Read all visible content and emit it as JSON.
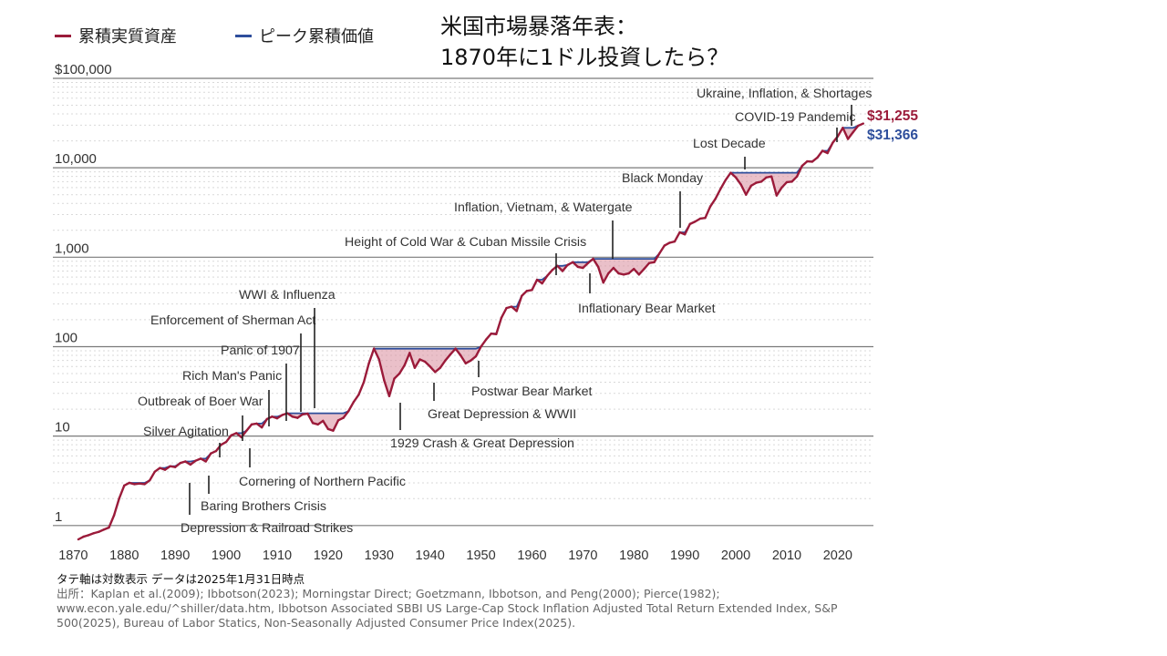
{
  "title": {
    "line1": "米国市場暴落年表：",
    "line2": "1870年に1ドル投資したら？"
  },
  "legend": [
    {
      "label": "累積実質資産",
      "color": "#9b1b3a"
    },
    {
      "label": "ピーク累積価値",
      "color": "#2e4e9c"
    }
  ],
  "notes": {
    "line1": "タテ軸は対数表示  データは2025年1月31日時点",
    "source": "出所：Kaplan et al.(2009); Ibbotson(2023); Morningstar Direct; Goetzmann, Ibbotson, and Peng(2000); Pierce(1982); www.econ.yale.edu/^shiller/data.htm, Ibbotson Associated SBBI US Large-Cap Stock Inflation Adjusted Total Return Extended Index, S&P 500(2025), Bureau of Labor Statics, Non-Seasonally Adjusted Consumer Price Index(2025)."
  },
  "chart_data": {
    "type": "line",
    "yscale": "log",
    "ylim": [
      0.7,
      100000
    ],
    "xlim": [
      1866,
      2027
    ],
    "y_ticks": [
      {
        "value": 1,
        "label": "1"
      },
      {
        "value": 10,
        "label": "10"
      },
      {
        "value": 100,
        "label": "100"
      },
      {
        "value": 1000,
        "label": "1,000"
      },
      {
        "value": 10000,
        "label": "10,000"
      },
      {
        "value": 100000,
        "label": "$100,000"
      }
    ],
    "x_ticks": [
      1870,
      1880,
      1890,
      1900,
      1910,
      1920,
      1930,
      1940,
      1950,
      1960,
      1970,
      1980,
      1990,
      2000,
      2010,
      2020
    ],
    "series": [
      {
        "name": "累積実質資産",
        "color": "#9b1b3a",
        "points": [
          [
            1871,
            0.7
          ],
          [
            1872,
            0.75
          ],
          [
            1873,
            0.78
          ],
          [
            1874,
            0.82
          ],
          [
            1875,
            0.85
          ],
          [
            1876,
            0.9
          ],
          [
            1877,
            0.95
          ],
          [
            1878,
            1.3
          ],
          [
            1879,
            2.0
          ],
          [
            1880,
            2.8
          ],
          [
            1881,
            3.0
          ],
          [
            1882,
            2.9
          ],
          [
            1883,
            2.95
          ],
          [
            1884,
            2.9
          ],
          [
            1885,
            3.2
          ],
          [
            1886,
            4.0
          ],
          [
            1887,
            4.4
          ],
          [
            1888,
            4.2
          ],
          [
            1889,
            4.6
          ],
          [
            1890,
            4.5
          ],
          [
            1891,
            5.0
          ],
          [
            1892,
            5.2
          ],
          [
            1893,
            4.8
          ],
          [
            1894,
            5.3
          ],
          [
            1895,
            5.6
          ],
          [
            1896,
            5.2
          ],
          [
            1897,
            6.4
          ],
          [
            1898,
            6.8
          ],
          [
            1899,
            8.0
          ],
          [
            1900,
            8.6
          ],
          [
            1901,
            10.2
          ],
          [
            1902,
            10.8
          ],
          [
            1903,
            9.7
          ],
          [
            1904,
            11.5
          ],
          [
            1905,
            13.5
          ],
          [
            1906,
            13.8
          ],
          [
            1907,
            12.5
          ],
          [
            1908,
            15.5
          ],
          [
            1909,
            16.5
          ],
          [
            1910,
            15.8
          ],
          [
            1911,
            17.2
          ],
          [
            1912,
            18.0
          ],
          [
            1913,
            16.5
          ],
          [
            1914,
            16.0
          ],
          [
            1915,
            17.5
          ],
          [
            1916,
            17.8
          ],
          [
            1917,
            14.0
          ],
          [
            1918,
            13.5
          ],
          [
            1919,
            14.8
          ],
          [
            1920,
            12.0
          ],
          [
            1921,
            11.5
          ],
          [
            1922,
            15.0
          ],
          [
            1923,
            16.0
          ],
          [
            1924,
            19.0
          ],
          [
            1925,
            24.0
          ],
          [
            1926,
            29.0
          ],
          [
            1927,
            40.0
          ],
          [
            1928,
            65.0
          ],
          [
            1929,
            95.0
          ],
          [
            1930,
            72.0
          ],
          [
            1931,
            42.0
          ],
          [
            1932,
            28.0
          ],
          [
            1933,
            44.0
          ],
          [
            1934,
            50.0
          ],
          [
            1935,
            62.0
          ],
          [
            1936,
            85.0
          ],
          [
            1937,
            58.0
          ],
          [
            1938,
            72.0
          ],
          [
            1939,
            68.0
          ],
          [
            1940,
            60.0
          ],
          [
            1941,
            52.0
          ],
          [
            1942,
            58.0
          ],
          [
            1943,
            70.0
          ],
          [
            1944,
            82.0
          ],
          [
            1945,
            95.0
          ],
          [
            1946,
            80.0
          ],
          [
            1947,
            65.0
          ],
          [
            1948,
            70.0
          ],
          [
            1949,
            78.0
          ],
          [
            1950,
            100.0
          ],
          [
            1951,
            120.0
          ],
          [
            1952,
            140.0
          ],
          [
            1953,
            138.0
          ],
          [
            1954,
            210.0
          ],
          [
            1955,
            270.0
          ],
          [
            1956,
            280.0
          ],
          [
            1957,
            250.0
          ],
          [
            1958,
            370.0
          ],
          [
            1959,
            420.0
          ],
          [
            1960,
            430.0
          ],
          [
            1961,
            560.0
          ],
          [
            1962,
            510.0
          ],
          [
            1963,
            620.0
          ],
          [
            1964,
            720.0
          ],
          [
            1965,
            800.0
          ],
          [
            1966,
            700.0
          ],
          [
            1967,
            820.0
          ],
          [
            1968,
            880.0
          ],
          [
            1969,
            780.0
          ],
          [
            1970,
            760.0
          ],
          [
            1971,
            860.0
          ],
          [
            1972,
            960.0
          ],
          [
            1973,
            780.0
          ],
          [
            1974,
            520.0
          ],
          [
            1975,
            660.0
          ],
          [
            1976,
            760.0
          ],
          [
            1977,
            660.0
          ],
          [
            1978,
            640.0
          ],
          [
            1979,
            660.0
          ],
          [
            1980,
            740.0
          ],
          [
            1981,
            640.0
          ],
          [
            1982,
            740.0
          ],
          [
            1983,
            860.0
          ],
          [
            1984,
            880.0
          ],
          [
            1985,
            1100.0
          ],
          [
            1986,
            1350.0
          ],
          [
            1987,
            1450.0
          ],
          [
            1988,
            1500.0
          ],
          [
            1989,
            1900.0
          ],
          [
            1990,
            1800.0
          ],
          [
            1991,
            2350.0
          ],
          [
            1992,
            2500.0
          ],
          [
            1993,
            2700.0
          ],
          [
            1994,
            2750.0
          ],
          [
            1995,
            3700.0
          ],
          [
            1996,
            4500.0
          ],
          [
            1997,
            5800.0
          ],
          [
            1998,
            7300.0
          ],
          [
            1999,
            8800.0
          ],
          [
            2000,
            7800.0
          ],
          [
            2001,
            6500.0
          ],
          [
            2002,
            5000.0
          ],
          [
            2003,
            6300.0
          ],
          [
            2004,
            6800.0
          ],
          [
            2005,
            7000.0
          ],
          [
            2006,
            7800.0
          ],
          [
            2007,
            8000.0
          ],
          [
            2008,
            4900.0
          ],
          [
            2009,
            6000.0
          ],
          [
            2010,
            6900.0
          ],
          [
            2011,
            7000.0
          ],
          [
            2012,
            8000.0
          ],
          [
            2013,
            10500.0
          ],
          [
            2014,
            11800.0
          ],
          [
            2015,
            11700.0
          ],
          [
            2016,
            13000.0
          ],
          [
            2017,
            15500.0
          ],
          [
            2018,
            14600.0
          ],
          [
            2019,
            19000.0
          ],
          [
            2020,
            22500.0
          ],
          [
            2021,
            28000.0
          ],
          [
            2022,
            21000.0
          ],
          [
            2023,
            25000.0
          ],
          [
            2024,
            29500.0
          ],
          [
            2025,
            31255.0
          ]
        ]
      },
      {
        "name": "ピーク累積価値",
        "color": "#2e4e9c"
      }
    ],
    "end_labels": [
      {
        "text": "$31,255",
        "color": "#9b1b3a"
      },
      {
        "text": "$31,366",
        "color": "#2e4e9c"
      }
    ],
    "annotations": [
      {
        "text": "Depression & Railroad Strikes",
        "year": 1877
      },
      {
        "text": "Baring Brothers Crisis",
        "year": 1890
      },
      {
        "text": "Silver Agitation",
        "year": 1893
      },
      {
        "text": "Cornering of Northern Pacific",
        "year": 1901
      },
      {
        "text": "Outbreak of Boer War",
        "year": 1899
      },
      {
        "text": "Rich Man's Panic",
        "year": 1903
      },
      {
        "text": "Panic of 1907",
        "year": 1907
      },
      {
        "text": "Enforcement of Sherman Act",
        "year": 1911
      },
      {
        "text": "WWI & Influenza",
        "year": 1917
      },
      {
        "text": "1929 Crash & Great Depression",
        "year": 1929
      },
      {
        "text": "Great Depression & WWII",
        "year": 1937
      },
      {
        "text": "Postwar Bear Market",
        "year": 1946
      },
      {
        "text": "Height of Cold War & Cuban Missile Crisis",
        "year": 1962
      },
      {
        "text": "Inflationary Bear Market",
        "year": 1973
      },
      {
        "text": "Inflation, Vietnam, & Watergate",
        "year": 1973
      },
      {
        "text": "Black Monday",
        "year": 1987
      },
      {
        "text": "Lost Decade",
        "year": 2000
      },
      {
        "text": "COVID-19 Pandemic",
        "year": 2020
      },
      {
        "text": "Ukraine, Inflation, & Shortages",
        "year": 2022
      }
    ]
  }
}
